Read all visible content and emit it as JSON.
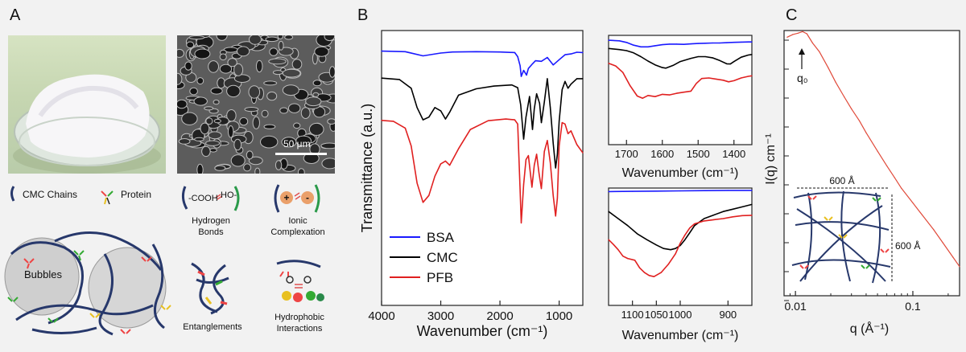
{
  "panels": {
    "a": {
      "letter": "A"
    },
    "b": {
      "letter": "B"
    },
    "c": {
      "letter": "C"
    }
  },
  "panel_a": {
    "sem_scale_label": "50 μm",
    "legend": {
      "chains": "CMC Chains",
      "protein": "Protein"
    },
    "bubbles_label": "Bubbles",
    "interactions": {
      "hydrogen": {
        "formula_left": "-COOH",
        "formula_right": "HO-",
        "label_line1": "Hydrogen",
        "label_line2": "Bonds"
      },
      "ionic": {
        "plus": "+",
        "minus": "-",
        "label_line1": "Ionic",
        "label_line2": "Complexation"
      },
      "entanglements": {
        "label": "Entanglements"
      },
      "hydrophobic": {
        "label_line1": "Hydrophobic",
        "label_line2": "Interactions"
      }
    }
  },
  "chart_data": [
    {
      "type": "line",
      "panel": "B-main",
      "xlabel": "Wavenumber (cm⁻¹)",
      "ylabel": "Transmittance (a.u.)",
      "xlim": [
        4000,
        600
      ],
      "xticks": [
        "4000",
        "3000",
        "2000",
        "1000"
      ],
      "legend": {
        "placement": "bottom-left",
        "entries": [
          "BSA",
          "CMC",
          "PFB"
        ]
      },
      "series": [
        {
          "name": "BSA",
          "color": "#1a1aff",
          "x": [
            4000,
            3600,
            3300,
            3000,
            2800,
            2400,
            2000,
            1750,
            1700,
            1660,
            1640,
            1600,
            1550,
            1520,
            1450,
            1400,
            1300,
            1200,
            1100,
            1000,
            900,
            800,
            700,
            600
          ],
          "y": [
            92.5,
            92.3,
            90.8,
            91.8,
            92.2,
            92.3,
            92.2,
            92.0,
            90.5,
            87.2,
            83.3,
            85.5,
            83.8,
            86.2,
            87.9,
            89.0,
            88.8,
            90.2,
            87.5,
            89.4,
            91.2,
            91.5,
            92.1,
            92.0
          ]
        },
        {
          "name": "CMC",
          "color": "#000000",
          "x": [
            4000,
            3700,
            3500,
            3400,
            3300,
            3200,
            3100,
            3000,
            2920,
            2850,
            2700,
            2400,
            2100,
            1800,
            1700,
            1650,
            1600,
            1560,
            1500,
            1450,
            1420,
            1380,
            1330,
            1300,
            1250,
            1200,
            1150,
            1100,
            1060,
            1030,
            1000,
            950,
            900,
            850,
            800,
            700,
            600
          ],
          "y": [
            82.7,
            82.2,
            79,
            72,
            67.5,
            68.5,
            72,
            70.8,
            67.8,
            70.3,
            76.5,
            78.8,
            79.8,
            80.2,
            79.2,
            73,
            60.5,
            68.5,
            76,
            64,
            71.5,
            77,
            73.5,
            66.5,
            74,
            82.5,
            72,
            59,
            50,
            55,
            67,
            78.5,
            81.5,
            79,
            80.5,
            82.5,
            82.5
          ]
        },
        {
          "name": "PFB",
          "color": "#e02020",
          "x": [
            4000,
            3800,
            3600,
            3500,
            3400,
            3300,
            3200,
            3100,
            3000,
            2920,
            2850,
            2700,
            2500,
            2200,
            1900,
            1750,
            1700,
            1660,
            1640,
            1600,
            1560,
            1520,
            1460,
            1420,
            1380,
            1340,
            1300,
            1250,
            1200,
            1150,
            1100,
            1060,
            1030,
            1000,
            950,
            900,
            850,
            800,
            700,
            600
          ],
          "y": [
            67.3,
            67,
            64.5,
            58,
            44.5,
            37.5,
            40,
            47,
            51.5,
            52.5,
            51,
            57,
            64,
            67.2,
            67.8,
            67.5,
            66,
            42,
            30,
            44,
            53,
            54.5,
            43,
            51,
            55,
            48,
            42.5,
            56,
            60,
            52,
            40,
            32.5,
            39,
            58,
            66.5,
            66,
            62.5,
            63.5,
            58.5,
            55.5
          ]
        }
      ]
    },
    {
      "type": "line",
      "panel": "B-zoom-1",
      "xlabel": "Wavenumber (cm⁻¹)",
      "xlim": [
        1750,
        1350
      ],
      "xticks": [
        "1700",
        "1600",
        "1500",
        "1400"
      ],
      "series": [
        {
          "name": "BSA",
          "color": "#1a1aff",
          "x": [
            1750,
            1720,
            1700,
            1680,
            1660,
            1640,
            1620,
            1600,
            1580,
            1560,
            1540,
            1520,
            1500,
            1480,
            1460,
            1440,
            1420,
            1400,
            1380,
            1360,
            1350
          ],
          "y": [
            95.5,
            95,
            93.5,
            91,
            89.5,
            89.5,
            90.5,
            91.5,
            92,
            92,
            91.8,
            92.2,
            92.6,
            92.8,
            93,
            93,
            93.3,
            93.6,
            93.8,
            94,
            94
          ]
        },
        {
          "name": "CMC",
          "color": "#000000",
          "x": [
            1750,
            1720,
            1700,
            1680,
            1660,
            1640,
            1620,
            1600,
            1590,
            1570,
            1550,
            1520,
            1500,
            1480,
            1460,
            1440,
            1420,
            1410,
            1400,
            1380,
            1360,
            1350
          ],
          "y": [
            88,
            87,
            86,
            84,
            80.5,
            76.5,
            73,
            70.5,
            70,
            72.5,
            76,
            79,
            80.5,
            80.5,
            79.5,
            77,
            74,
            73.8,
            76,
            80,
            82,
            82.5
          ]
        },
        {
          "name": "PFB",
          "color": "#e02020",
          "x": [
            1750,
            1730,
            1710,
            1690,
            1670,
            1655,
            1640,
            1620,
            1600,
            1580,
            1560,
            1540,
            1520,
            1505,
            1490,
            1470,
            1450,
            1430,
            1415,
            1400,
            1380,
            1360,
            1350
          ],
          "y": [
            74.5,
            72,
            66,
            54,
            44.5,
            42.5,
            45,
            44,
            46,
            45.5,
            47,
            48,
            49,
            56,
            60.5,
            61,
            60,
            59,
            57.5,
            58.5,
            61,
            62.5,
            63
          ]
        }
      ]
    },
    {
      "type": "line",
      "panel": "B-zoom-2",
      "xlabel": "Wavenumber (cm⁻¹)",
      "xlim": [
        1150,
        850
      ],
      "xticks": [
        "1100",
        "1050",
        "1000",
        "900"
      ],
      "series": [
        {
          "name": "BSA",
          "color": "#1a1aff",
          "x": [
            1150,
            1100,
            1050,
            1000,
            950,
            900,
            850
          ],
          "y": [
            97,
            97.2,
            97.4,
            97.6,
            97.8,
            98,
            98
          ]
        },
        {
          "name": "CMC",
          "color": "#000000",
          "x": [
            1150,
            1130,
            1110,
            1090,
            1070,
            1050,
            1035,
            1020,
            1010,
            1000,
            990,
            980,
            970,
            950,
            930,
            910,
            890,
            870,
            850
          ],
          "y": [
            80,
            74,
            68,
            61,
            56,
            51.5,
            48.5,
            47.5,
            48.5,
            51,
            56,
            62,
            68,
            74,
            77,
            80,
            82,
            84,
            86
          ]
        },
        {
          "name": "PFB",
          "color": "#e02020",
          "x": [
            1150,
            1140,
            1130,
            1120,
            1110,
            1095,
            1085,
            1075,
            1065,
            1055,
            1040,
            1025,
            1010,
            1000,
            990,
            980,
            970,
            950,
            930,
            910,
            890,
            870,
            850
          ],
          "y": [
            56,
            52,
            47.5,
            42,
            40,
            38.5,
            32,
            28,
            25.5,
            24.5,
            28,
            35,
            44,
            53,
            60,
            66,
            69.5,
            72,
            73,
            74,
            75.5,
            76.5,
            76.8
          ]
        }
      ]
    },
    {
      "type": "line",
      "panel": "C",
      "xlabel": "q (Å⁻¹)",
      "ylabel": "I(q) cm⁻¹",
      "x_scale": "log",
      "xlim": [
        0.008,
        0.25
      ],
      "xticks": [
        "0.01",
        "0.1"
      ],
      "peak_label": "q₀",
      "series": [
        {
          "name": "",
          "color": "#e04a3a",
          "x": [
            0.0085,
            0.0095,
            0.0105,
            0.0115,
            0.0125,
            0.014,
            0.016,
            0.019,
            0.022,
            0.026,
            0.03,
            0.035,
            0.04,
            0.05,
            0.06,
            0.07,
            0.08,
            0.1,
            0.12,
            0.15,
            0.18,
            0.22,
            0.25
          ],
          "y": [
            97.5,
            98.5,
            99,
            99.6,
            98.8,
            95.3,
            92,
            86,
            80.5,
            75,
            70.5,
            66,
            61.5,
            54.5,
            49,
            44.5,
            40.5,
            35,
            30.5,
            25,
            20,
            14.5,
            11
          ]
        }
      ]
    }
  ],
  "network_inset": {
    "dim_horizontal": "600 Å",
    "dim_vertical": "600 Å"
  },
  "colors": {
    "bsa": "#1a1aff",
    "cmc": "#000000",
    "pfb": "#e02020",
    "saxs": "#e04a3a",
    "chain": "#27386b"
  }
}
